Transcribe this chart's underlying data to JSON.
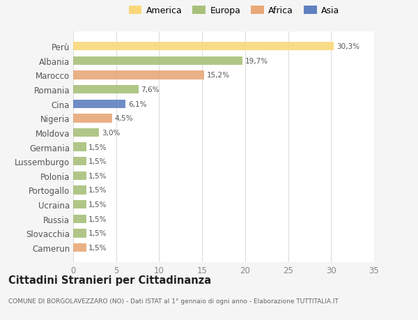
{
  "countries": [
    "Perù",
    "Albania",
    "Marocco",
    "Romania",
    "Cina",
    "Nigeria",
    "Moldova",
    "Germania",
    "Lussemburgo",
    "Polonia",
    "Portogallo",
    "Ucraina",
    "Russia",
    "Slovacchia",
    "Camerun"
  ],
  "values": [
    30.3,
    19.7,
    15.2,
    7.6,
    6.1,
    4.5,
    3.0,
    1.5,
    1.5,
    1.5,
    1.5,
    1.5,
    1.5,
    1.5,
    1.5
  ],
  "labels": [
    "30,3%",
    "19,7%",
    "15,2%",
    "7,6%",
    "6,1%",
    "4,5%",
    "3,0%",
    "1,5%",
    "1,5%",
    "1,5%",
    "1,5%",
    "1,5%",
    "1,5%",
    "1,5%",
    "1,5%"
  ],
  "continents": [
    "America",
    "Europa",
    "Africa",
    "Europa",
    "Asia",
    "Africa",
    "Europa",
    "Europa",
    "Europa",
    "Europa",
    "Europa",
    "Europa",
    "Europa",
    "Europa",
    "Africa"
  ],
  "colors": {
    "America": "#F9D87A",
    "Europa": "#A8C07A",
    "Africa": "#E8A878",
    "Asia": "#6080C0"
  },
  "legend_order": [
    "America",
    "Europa",
    "Africa",
    "Asia"
  ],
  "legend_colors": [
    "#F9D87A",
    "#A8C07A",
    "#E8A878",
    "#6080C0"
  ],
  "xlim": [
    0,
    35
  ],
  "xticks": [
    0,
    5,
    10,
    15,
    20,
    25,
    30,
    35
  ],
  "title": "Cittadini Stranieri per Cittadinanza",
  "subtitle": "COMUNE DI BORGOLAVEZZARO (NO) - Dati ISTAT al 1° gennaio di ogni anno - Elaborazione TUTTITALIA.IT",
  "bg_color": "#f5f5f5",
  "plot_bg_color": "#ffffff",
  "grid_color": "#dddddd"
}
